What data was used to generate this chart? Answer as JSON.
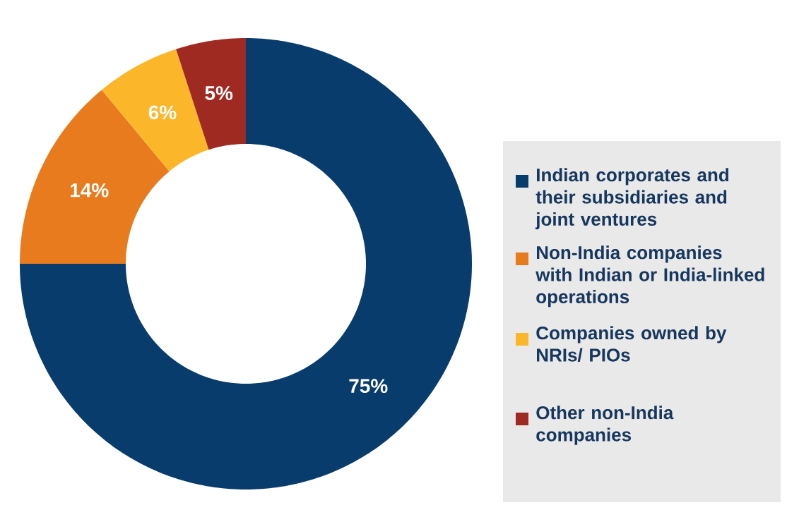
{
  "chart_data": {
    "type": "donut",
    "categories": [
      "Indian corporates and their subsidiaries and joint ventures",
      "Non-India companies with Indian or India-linked operations",
      "Companies owned by NRIs/ PIOs",
      "Other non-India companies"
    ],
    "values": [
      75,
      14,
      6,
      5
    ],
    "colors": [
      "#083c6c",
      "#e87b1e",
      "#fbb62a",
      "#9e2a22"
    ],
    "value_labels": [
      "75%",
      "14%",
      "6%",
      "5%"
    ],
    "legend": "right"
  }
}
